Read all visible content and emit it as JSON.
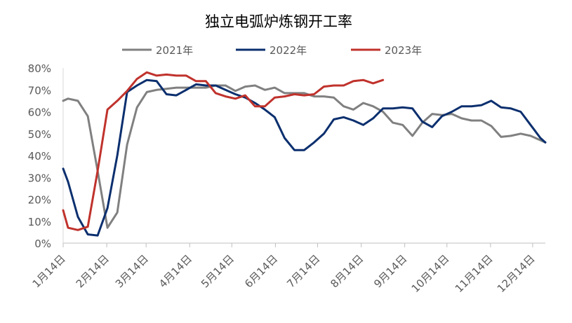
{
  "chart_data": {
    "type": "line",
    "title": "独立电弧炉炼钢开工率",
    "xlabel": "",
    "ylabel": "",
    "ylim": [
      0,
      80
    ],
    "ytick_labels": [
      "0%",
      "10%",
      "20%",
      "30%",
      "40%",
      "50%",
      "60%",
      "70%",
      "80%"
    ],
    "x_tick_labels": [
      "1月14日",
      "2月14日",
      "3月14日",
      "4月14日",
      "5月14日",
      "6月14日",
      "7月14日",
      "8月14日",
      "9月14日",
      "10月14日",
      "11月14日",
      "12月14日"
    ],
    "x_tick_weeks": [
      0,
      4.43,
      8.43,
      12.86,
      17.14,
      21.57,
      25.86,
      30.29,
      34.71,
      39.0,
      43.43,
      47.71
    ],
    "x_range": [
      0,
      49
    ],
    "grid": false,
    "legend_position": "top",
    "series": [
      {
        "name": "2021年",
        "color": "#808080",
        "x": [
          0,
          0.5,
          1.5,
          2.5,
          3.5,
          4.5,
          5.5,
          6.5,
          7.5,
          8.5,
          9.5,
          10.5,
          11.5,
          12.5,
          13.5,
          14.5,
          15.5,
          16.5,
          17.5,
          18.5,
          19.5,
          20.5,
          21.5,
          22.5,
          23.5,
          24.5,
          25.5,
          26.5,
          27.5,
          28.5,
          29.5,
          30.5,
          31.5,
          32.5,
          33.5,
          34.5,
          35.5,
          36.5,
          37.5,
          38.5,
          39.5,
          40.5,
          41.5,
          42.5,
          43.5,
          44.5,
          45.5,
          46.5,
          47.5,
          48.5,
          49
        ],
        "values": [
          65,
          66,
          65,
          58,
          33,
          7,
          14,
          45,
          62,
          69,
          70,
          70.5,
          71,
          71,
          71,
          71,
          72,
          72,
          69.5,
          71.5,
          72,
          70,
          71,
          68.5,
          68.5,
          68.5,
          67,
          67,
          66.5,
          62.5,
          61,
          64,
          62.5,
          60,
          55,
          54,
          49,
          55,
          59,
          58.5,
          59,
          57,
          56,
          56,
          53.5,
          48.5,
          49,
          50,
          49,
          47,
          46
        ]
      },
      {
        "name": "2022年",
        "color": "#0b2f6e",
        "x": [
          0,
          0.5,
          1.5,
          2.5,
          3.5,
          4.5,
          5.5,
          6.5,
          7.5,
          8.5,
          9.5,
          10.5,
          11.5,
          12.5,
          13.5,
          14.5,
          15.5,
          16.5,
          17.5,
          18.5,
          19.5,
          20.5,
          21.5,
          22.5,
          23.5,
          24.5,
          25.5,
          26.5,
          27.5,
          28.5,
          29.5,
          30.5,
          31.5,
          32.5,
          33.5,
          34.5,
          35.5,
          36.5,
          37.5,
          38.5,
          39.5,
          40.5,
          41.5,
          42.5,
          43.5,
          44.5,
          45.5,
          46.5,
          47.5,
          48.5,
          49
        ],
        "values": [
          34,
          28,
          12,
          4,
          3.5,
          16,
          40,
          69,
          72,
          74.5,
          74,
          68,
          67.5,
          70,
          72.5,
          72,
          72,
          70,
          68,
          66.5,
          64,
          61,
          57.5,
          48,
          42.5,
          42.5,
          46,
          50,
          56.5,
          57.5,
          56,
          54,
          57,
          61.5,
          61.5,
          62,
          61.5,
          55.5,
          53,
          58,
          60,
          62.5,
          62.5,
          63,
          65,
          62,
          61.5,
          60,
          54,
          48,
          46
        ]
      },
      {
        "name": "2023年",
        "color": "#c0322c",
        "x": [
          0,
          0.5,
          1.5,
          2.5,
          3.5,
          4.5,
          5.5,
          6.5,
          7.5,
          8.5,
          9.5,
          10.5,
          11.5,
          12.5,
          13.5,
          14.5,
          15.5,
          16.5,
          17.5,
          18.5,
          19.5,
          20.5,
          21.5,
          22.5,
          23.5,
          24.5,
          25.5,
          26.5,
          27.5,
          28.5,
          29.5,
          30.5,
          31.5,
          32.5
        ],
        "values": [
          15,
          7,
          6,
          7.5,
          33,
          61,
          65,
          69.5,
          75,
          78,
          76.5,
          77,
          76.5,
          76.5,
          74,
          74,
          68.5,
          67,
          66,
          67.5,
          62.5,
          62.5,
          66.5,
          67,
          68,
          67.5,
          68,
          71.5,
          72,
          72,
          74,
          74.5,
          73,
          74.5
        ]
      }
    ]
  }
}
